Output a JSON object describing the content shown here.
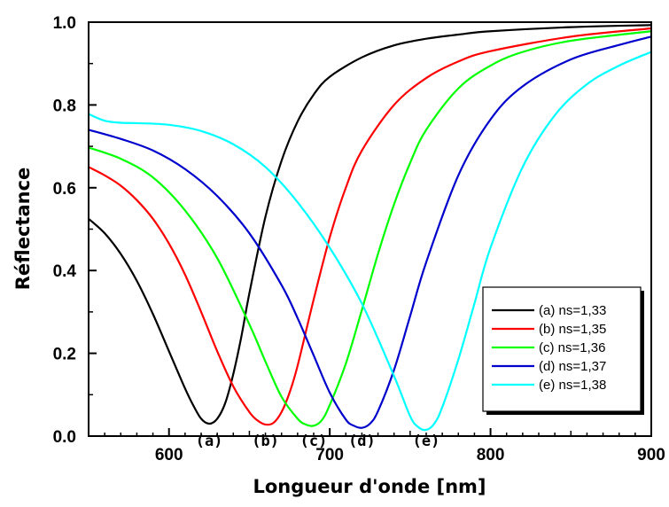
{
  "chart_data": {
    "type": "line",
    "xlabel": "Longueur d'onde [nm]",
    "ylabel": "Réflectance",
    "xlim": [
      550,
      900
    ],
    "ylim": [
      0.0,
      1.0
    ],
    "x_ticks": [
      600,
      700,
      800,
      900
    ],
    "y_ticks": [
      0.0,
      0.2,
      0.4,
      0.6,
      0.8,
      1.0
    ],
    "x_tick_labels": [
      "600",
      "700",
      "800",
      "900"
    ],
    "y_tick_labels": [
      "0.0",
      "0.2",
      "0.4",
      "0.6",
      "0.8",
      "1.0"
    ],
    "grid": false,
    "legend_position": "bottom-right",
    "series": [
      {
        "name": "(a) ns=1,33",
        "label": "(a)",
        "color": "#000000",
        "x": [
          550,
          560,
          570,
          580,
          590,
          600,
          610,
          615,
          620,
          625,
          630,
          635,
          640,
          645,
          650,
          660,
          670,
          680,
          690,
          700,
          720,
          740,
          760,
          780,
          800,
          850,
          900
        ],
        "y": [
          0.525,
          0.49,
          0.44,
          0.375,
          0.295,
          0.205,
          0.115,
          0.075,
          0.042,
          0.03,
          0.042,
          0.08,
          0.15,
          0.24,
          0.345,
          0.53,
          0.665,
          0.76,
          0.825,
          0.868,
          0.915,
          0.944,
          0.96,
          0.97,
          0.978,
          0.988,
          0.993
        ]
      },
      {
        "name": "(b) ns=1,35",
        "label": "(b)",
        "color": "#ff0000",
        "x": [
          550,
          560,
          570,
          580,
          590,
          600,
          610,
          620,
          630,
          640,
          650,
          655,
          660,
          665,
          670,
          675,
          680,
          690,
          700,
          710,
          720,
          740,
          760,
          780,
          800,
          850,
          900
        ],
        "y": [
          0.65,
          0.63,
          0.605,
          0.57,
          0.525,
          0.465,
          0.39,
          0.3,
          0.205,
          0.12,
          0.058,
          0.038,
          0.028,
          0.032,
          0.058,
          0.105,
          0.17,
          0.33,
          0.48,
          0.6,
          0.69,
          0.8,
          0.865,
          0.905,
          0.93,
          0.965,
          0.985
        ]
      },
      {
        "name": "(c) ns=1,36",
        "label": "(c)",
        "color": "#00ff00",
        "x": [
          550,
          570,
          590,
          610,
          630,
          650,
          660,
          670,
          680,
          685,
          690,
          695,
          700,
          710,
          720,
          730,
          740,
          750,
          760,
          780,
          800,
          820,
          850,
          900
        ],
        "y": [
          0.697,
          0.67,
          0.625,
          0.545,
          0.43,
          0.27,
          0.18,
          0.095,
          0.042,
          0.028,
          0.025,
          0.038,
          0.075,
          0.175,
          0.305,
          0.44,
          0.56,
          0.66,
          0.74,
          0.84,
          0.895,
          0.928,
          0.955,
          0.978
        ]
      },
      {
        "name": "(d) ns=1,37",
        "label": "(d)",
        "color": "#0000cc",
        "x": [
          550,
          570,
          590,
          610,
          630,
          650,
          670,
          680,
          690,
          700,
          710,
          715,
          720,
          725,
          730,
          740,
          750,
          760,
          780,
          800,
          820,
          850,
          880,
          900
        ],
        "y": [
          0.74,
          0.718,
          0.69,
          0.645,
          0.58,
          0.49,
          0.365,
          0.285,
          0.195,
          0.105,
          0.04,
          0.025,
          0.02,
          0.03,
          0.06,
          0.16,
          0.29,
          0.42,
          0.63,
          0.765,
          0.845,
          0.91,
          0.945,
          0.965
        ]
      },
      {
        "name": "(e) ns=1,38",
        "label": "(e)",
        "color": "#00ffff",
        "x": [
          550,
          560,
          570,
          580,
          600,
          620,
          640,
          660,
          680,
          700,
          720,
          740,
          750,
          755,
          760,
          765,
          770,
          780,
          790,
          800,
          820,
          840,
          860,
          880,
          900
        ],
        "y": [
          0.778,
          0.762,
          0.757,
          0.756,
          0.752,
          0.737,
          0.705,
          0.65,
          0.565,
          0.455,
          0.32,
          0.145,
          0.048,
          0.022,
          0.015,
          0.03,
          0.07,
          0.185,
          0.32,
          0.455,
          0.65,
          0.775,
          0.85,
          0.895,
          0.928
        ]
      }
    ]
  }
}
